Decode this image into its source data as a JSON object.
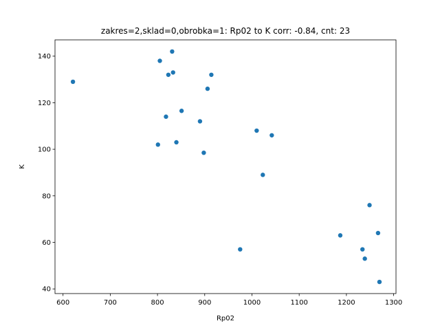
{
  "chart_data": {
    "type": "scatter",
    "title": "zakres=2,sklad=0,obrobka=1: Rp02 to K corr: -0.84, cnt: 23",
    "xlabel": "Rp02",
    "ylabel": "K",
    "xlim": [
      583,
      1305
    ],
    "ylim": [
      38,
      147
    ],
    "xticks": [
      600,
      700,
      800,
      900,
      1000,
      1100,
      1200,
      1300
    ],
    "yticks": [
      40,
      60,
      80,
      100,
      120,
      140
    ],
    "grid": false,
    "marker_color": "#1f77b4",
    "points": [
      {
        "x": 621,
        "y": 129
      },
      {
        "x": 801,
        "y": 102
      },
      {
        "x": 805,
        "y": 138
      },
      {
        "x": 818,
        "y": 114
      },
      {
        "x": 823,
        "y": 132
      },
      {
        "x": 831,
        "y": 142
      },
      {
        "x": 833,
        "y": 133
      },
      {
        "x": 840,
        "y": 103
      },
      {
        "x": 851,
        "y": 116.5
      },
      {
        "x": 890,
        "y": 112
      },
      {
        "x": 898,
        "y": 98.5
      },
      {
        "x": 906,
        "y": 126
      },
      {
        "x": 914,
        "y": 132
      },
      {
        "x": 975,
        "y": 57
      },
      {
        "x": 1010,
        "y": 108
      },
      {
        "x": 1023,
        "y": 89
      },
      {
        "x": 1042,
        "y": 106
      },
      {
        "x": 1187,
        "y": 63
      },
      {
        "x": 1234,
        "y": 57
      },
      {
        "x": 1239,
        "y": 53
      },
      {
        "x": 1249,
        "y": 76
      },
      {
        "x": 1267,
        "y": 64
      },
      {
        "x": 1270,
        "y": 43
      }
    ]
  }
}
